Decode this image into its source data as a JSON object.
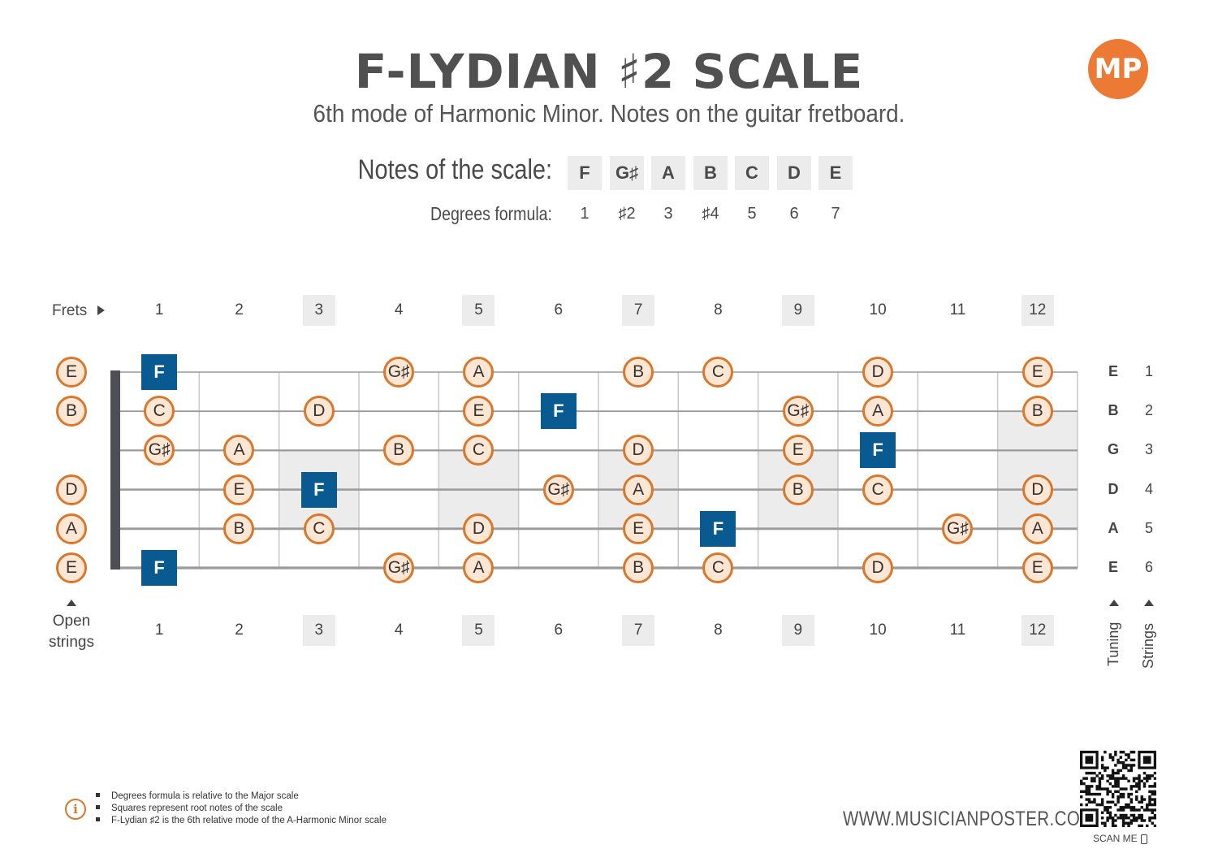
{
  "title": "F-LYDIAN ♯2 SCALE",
  "subtitle": "6th mode of Harmonic Minor. Notes on the guitar fretboard.",
  "logo_text": "MP",
  "scale": {
    "notes_label": "Notes of the scale:",
    "degrees_label": "Degrees formula:",
    "notes": [
      "F",
      "G♯",
      "A",
      "B",
      "C",
      "D",
      "E"
    ],
    "degrees": [
      "1",
      "♯2",
      "3",
      "♯4",
      "5",
      "6",
      "7"
    ]
  },
  "frets_label": "Frets",
  "fret_numbers": [
    "1",
    "2",
    "3",
    "4",
    "5",
    "6",
    "7",
    "8",
    "9",
    "10",
    "11",
    "12"
  ],
  "marker_frets": [
    3,
    5,
    7,
    9,
    12
  ],
  "open_strings_label": "Open strings",
  "tuning_label": "Tuning",
  "strings_label": "Strings",
  "strings": [
    {
      "tuning": "E",
      "number": "1",
      "open": "E",
      "notes": [
        {
          "fret": 1,
          "note": "F",
          "root": true
        },
        {
          "fret": 4,
          "note": "G♯"
        },
        {
          "fret": 5,
          "note": "A"
        },
        {
          "fret": 7,
          "note": "B"
        },
        {
          "fret": 8,
          "note": "C"
        },
        {
          "fret": 10,
          "note": "D"
        },
        {
          "fret": 12,
          "note": "E"
        }
      ]
    },
    {
      "tuning": "B",
      "number": "2",
      "open": "B",
      "notes": [
        {
          "fret": 1,
          "note": "C"
        },
        {
          "fret": 3,
          "note": "D"
        },
        {
          "fret": 5,
          "note": "E"
        },
        {
          "fret": 6,
          "note": "F",
          "root": true
        },
        {
          "fret": 9,
          "note": "G♯"
        },
        {
          "fret": 10,
          "note": "A"
        },
        {
          "fret": 12,
          "note": "B"
        }
      ]
    },
    {
      "tuning": "G",
      "number": "3",
      "open": "",
      "notes": [
        {
          "fret": 1,
          "note": "G♯"
        },
        {
          "fret": 2,
          "note": "A"
        },
        {
          "fret": 4,
          "note": "B"
        },
        {
          "fret": 5,
          "note": "C"
        },
        {
          "fret": 7,
          "note": "D"
        },
        {
          "fret": 9,
          "note": "E"
        },
        {
          "fret": 10,
          "note": "F",
          "root": true
        }
      ]
    },
    {
      "tuning": "D",
      "number": "4",
      "open": "D",
      "notes": [
        {
          "fret": 2,
          "note": "E"
        },
        {
          "fret": 3,
          "note": "F",
          "root": true
        },
        {
          "fret": 6,
          "note": "G♯"
        },
        {
          "fret": 7,
          "note": "A"
        },
        {
          "fret": 9,
          "note": "B"
        },
        {
          "fret": 10,
          "note": "C"
        },
        {
          "fret": 12,
          "note": "D"
        }
      ]
    },
    {
      "tuning": "A",
      "number": "5",
      "open": "A",
      "notes": [
        {
          "fret": 2,
          "note": "B"
        },
        {
          "fret": 3,
          "note": "C"
        },
        {
          "fret": 5,
          "note": "D"
        },
        {
          "fret": 7,
          "note": "E"
        },
        {
          "fret": 8,
          "note": "F",
          "root": true
        },
        {
          "fret": 11,
          "note": "G♯"
        },
        {
          "fret": 12,
          "note": "A"
        }
      ]
    },
    {
      "tuning": "E",
      "number": "6",
      "open": "E",
      "notes": [
        {
          "fret": 1,
          "note": "F",
          "root": true
        },
        {
          "fret": 4,
          "note": "G♯"
        },
        {
          "fret": 5,
          "note": "A"
        },
        {
          "fret": 7,
          "note": "B"
        },
        {
          "fret": 8,
          "note": "C"
        },
        {
          "fret": 10,
          "note": "D"
        },
        {
          "fret": 12,
          "note": "E"
        }
      ]
    }
  ],
  "footnotes": [
    "Degrees formula is relative to the Major scale",
    "Squares represent root notes of the scale",
    "F-Lydian ♯2 is the 6th relative mode of the A-Harmonic Minor scale"
  ],
  "website": "WWW.MUSICIANPOSTER.COM",
  "scan_label": "SCAN ME",
  "colors": {
    "accent": "#ec7a34",
    "note_fill": "#fde6d3",
    "note_border": "#d9782c",
    "root_fill": "#0a5a92",
    "marker_shade": "#ececec",
    "string": "#9a9a9a",
    "nut": "#4d4f55"
  }
}
